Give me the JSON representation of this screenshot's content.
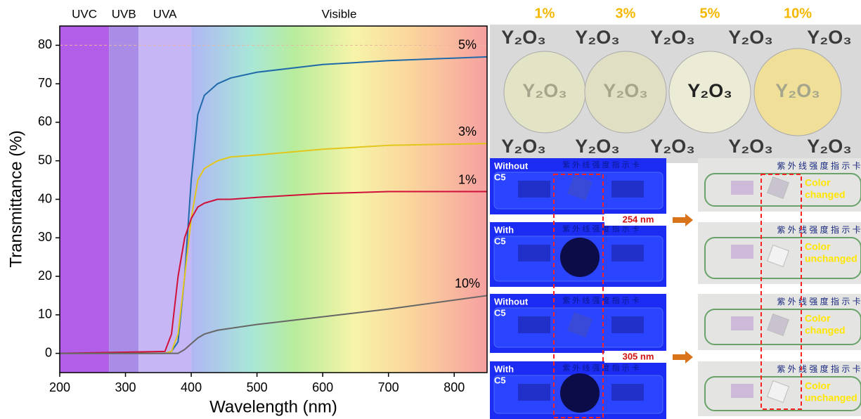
{
  "chart_data": {
    "type": "line",
    "xlabel": "Wavelength (nm)",
    "ylabel": "Transmittance (%)",
    "xlim": [
      200,
      850
    ],
    "ylim": [
      -5,
      85
    ],
    "xticks": [
      200,
      300,
      400,
      500,
      600,
      700,
      800
    ],
    "yticks": [
      0,
      10,
      20,
      30,
      40,
      50,
      60,
      70,
      80
    ],
    "regions": [
      {
        "label": "UVC",
        "range": [
          200,
          275
        ],
        "color": "#b25ee8"
      },
      {
        "label": "UVB",
        "range": [
          275,
          320
        ],
        "color": "#a88ce6"
      },
      {
        "label": "UVA",
        "range": [
          320,
          400
        ],
        "color": "#c6b6f6"
      },
      {
        "label": "Visible",
        "range": [
          400,
          850
        ]
      }
    ],
    "x": [
      200,
      360,
      370,
      380,
      390,
      400,
      410,
      420,
      440,
      460,
      500,
      600,
      700,
      850
    ],
    "series": [
      {
        "name": "5%",
        "color": "#1f6aa8",
        "values": [
          0,
          0,
          0.5,
          3,
          20,
          45,
          62,
          67,
          70,
          71.5,
          73,
          75,
          76,
          77
        ]
      },
      {
        "name": "3%",
        "color": "#e2c61c",
        "values": [
          0,
          0,
          0.5,
          5,
          20,
          35,
          45,
          48,
          50,
          51,
          51.5,
          53,
          54,
          54.5
        ]
      },
      {
        "name": "1%",
        "color": "#d0103a",
        "values": [
          0,
          0.5,
          5,
          20,
          30,
          35,
          38,
          39,
          40,
          40,
          40.5,
          41.5,
          42,
          42
        ]
      },
      {
        "name": "10%",
        "color": "#666666",
        "values": [
          0,
          0,
          0,
          0,
          1,
          2.5,
          4,
          5,
          6,
          6.5,
          7.5,
          9.5,
          11.5,
          15
        ]
      }
    ]
  },
  "photos": {
    "concentrations": [
      "1%",
      "3%",
      "5%",
      "10%"
    ],
    "sample_text": "Y₂O₃",
    "card_title": "紫 外 线 强 度 指 示 卡",
    "uv_cards": [
      {
        "label": [
          "Without",
          "C5"
        ]
      },
      {
        "label": [
          "With",
          "C5"
        ]
      },
      {
        "label": [
          "Without",
          "C5"
        ]
      },
      {
        "label": [
          "With",
          "C5"
        ]
      }
    ],
    "wavelengths": [
      "254 nm",
      "305 nm"
    ],
    "results": [
      [
        "Color",
        "changed"
      ],
      [
        "Color",
        "unchanged"
      ],
      [
        "Color",
        "changed"
      ],
      [
        "Color",
        "unchanged"
      ]
    ]
  }
}
